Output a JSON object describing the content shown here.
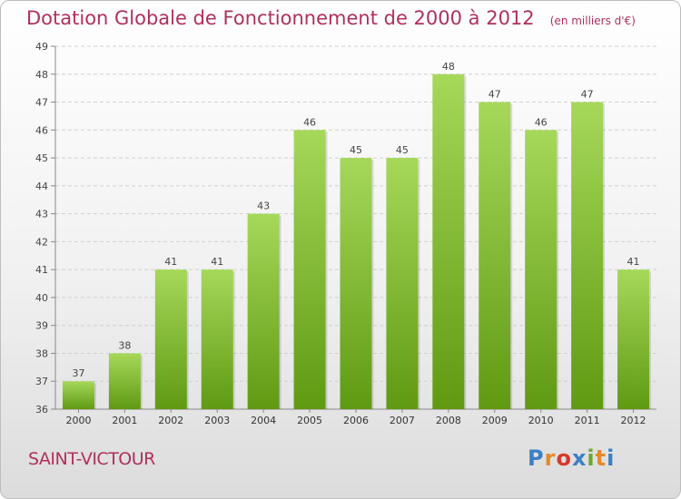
{
  "title": "Dotation Globale de Fonctionnement de 2000 à 2012",
  "unit": "(en milliers d'€)",
  "place": "SAINT-VICTOUR",
  "brand": "Proxiti",
  "colors": {
    "title": "#b0305a",
    "bar_light": "#a6d85a",
    "bar_dark": "#5f9a12",
    "logo": [
      "#3d7fc4",
      "#e5892a",
      "#d33a2c",
      "#3d7fc4",
      "#6aaa2b",
      "#e5892a",
      "#3d7fc4"
    ]
  },
  "chart_data": {
    "type": "bar",
    "title": "Dotation Globale de Fonctionnement de 2000 à 2012",
    "subtitle": "(en milliers d'€)",
    "xlabel": "",
    "ylabel": "",
    "categories": [
      "2000",
      "2001",
      "2002",
      "2003",
      "2004",
      "2005",
      "2006",
      "2007",
      "2008",
      "2009",
      "2010",
      "2011",
      "2012"
    ],
    "values": [
      37,
      38,
      41,
      41,
      43,
      46,
      45,
      45,
      48,
      47,
      46,
      47,
      41
    ],
    "ylim": [
      36,
      49
    ],
    "yticks": [
      36,
      37,
      38,
      39,
      40,
      41,
      42,
      43,
      44,
      45,
      46,
      47,
      48,
      49
    ],
    "grid": true,
    "legend": "none"
  }
}
